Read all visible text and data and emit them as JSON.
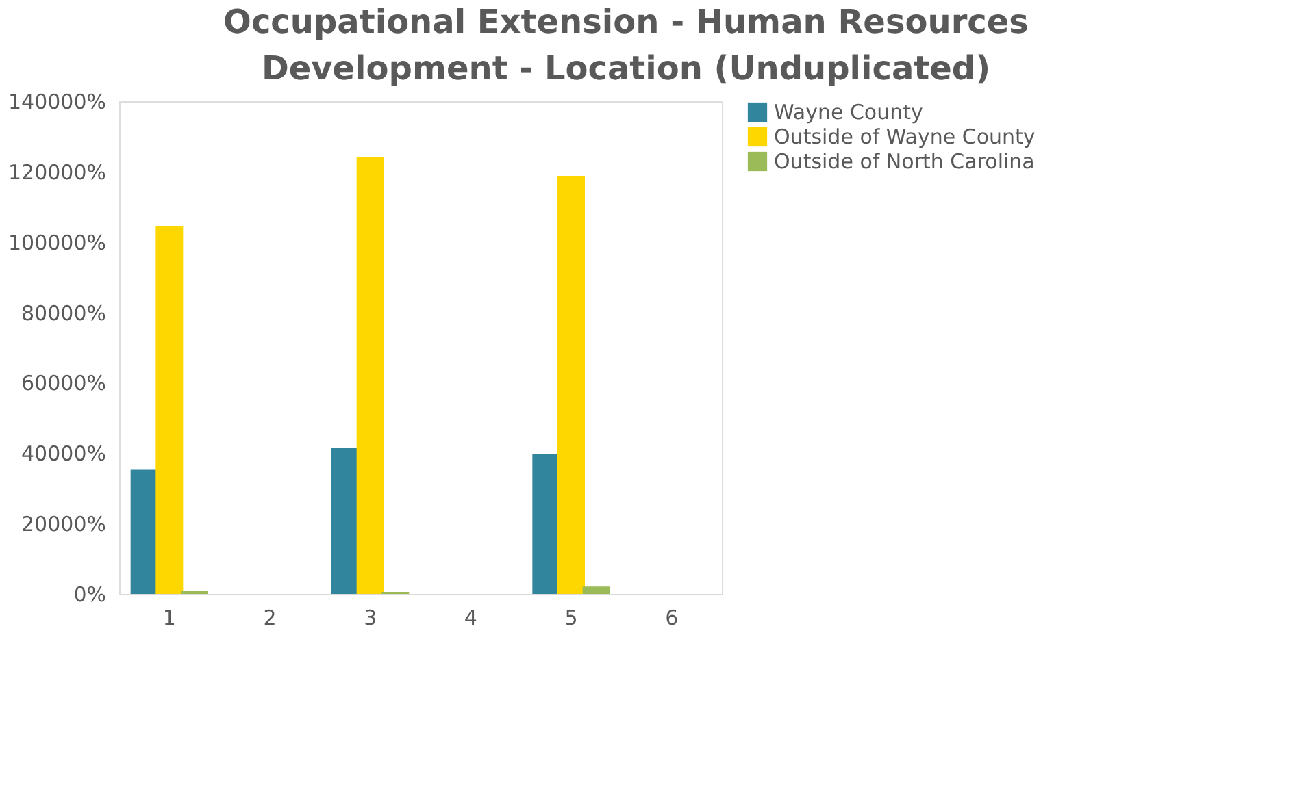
{
  "chart_data": {
    "type": "bar",
    "title": "Occupational Extension - Human Resources Development - Location (Unduplicated)",
    "categories": [
      "1",
      "2",
      "3",
      "4",
      "5",
      "6"
    ],
    "series": [
      {
        "name": "Wayne County",
        "color": "#31859c",
        "values": [
          35300,
          0,
          41600,
          0,
          39800,
          0
        ]
      },
      {
        "name": "Outside of Wayne County",
        "color": "#ffd700",
        "values": [
          104500,
          0,
          124100,
          0,
          118800,
          0
        ]
      },
      {
        "name": "Outside of North Carolina",
        "color": "#9bbb59",
        "values": [
          800,
          0,
          600,
          0,
          2100,
          0
        ]
      }
    ],
    "ylim": [
      0,
      140000
    ],
    "yticks": [
      {
        "value": 0,
        "label": "0%"
      },
      {
        "value": 20000,
        "label": "20000%"
      },
      {
        "value": 40000,
        "label": "40000%"
      },
      {
        "value": 60000,
        "label": "60000%"
      },
      {
        "value": 80000,
        "label": "80000%"
      },
      {
        "value": 100000,
        "label": "100000%"
      },
      {
        "value": 120000,
        "label": "120000%"
      },
      {
        "value": 140000,
        "label": "140000%"
      }
    ],
    "grid": false,
    "legend": "right"
  }
}
